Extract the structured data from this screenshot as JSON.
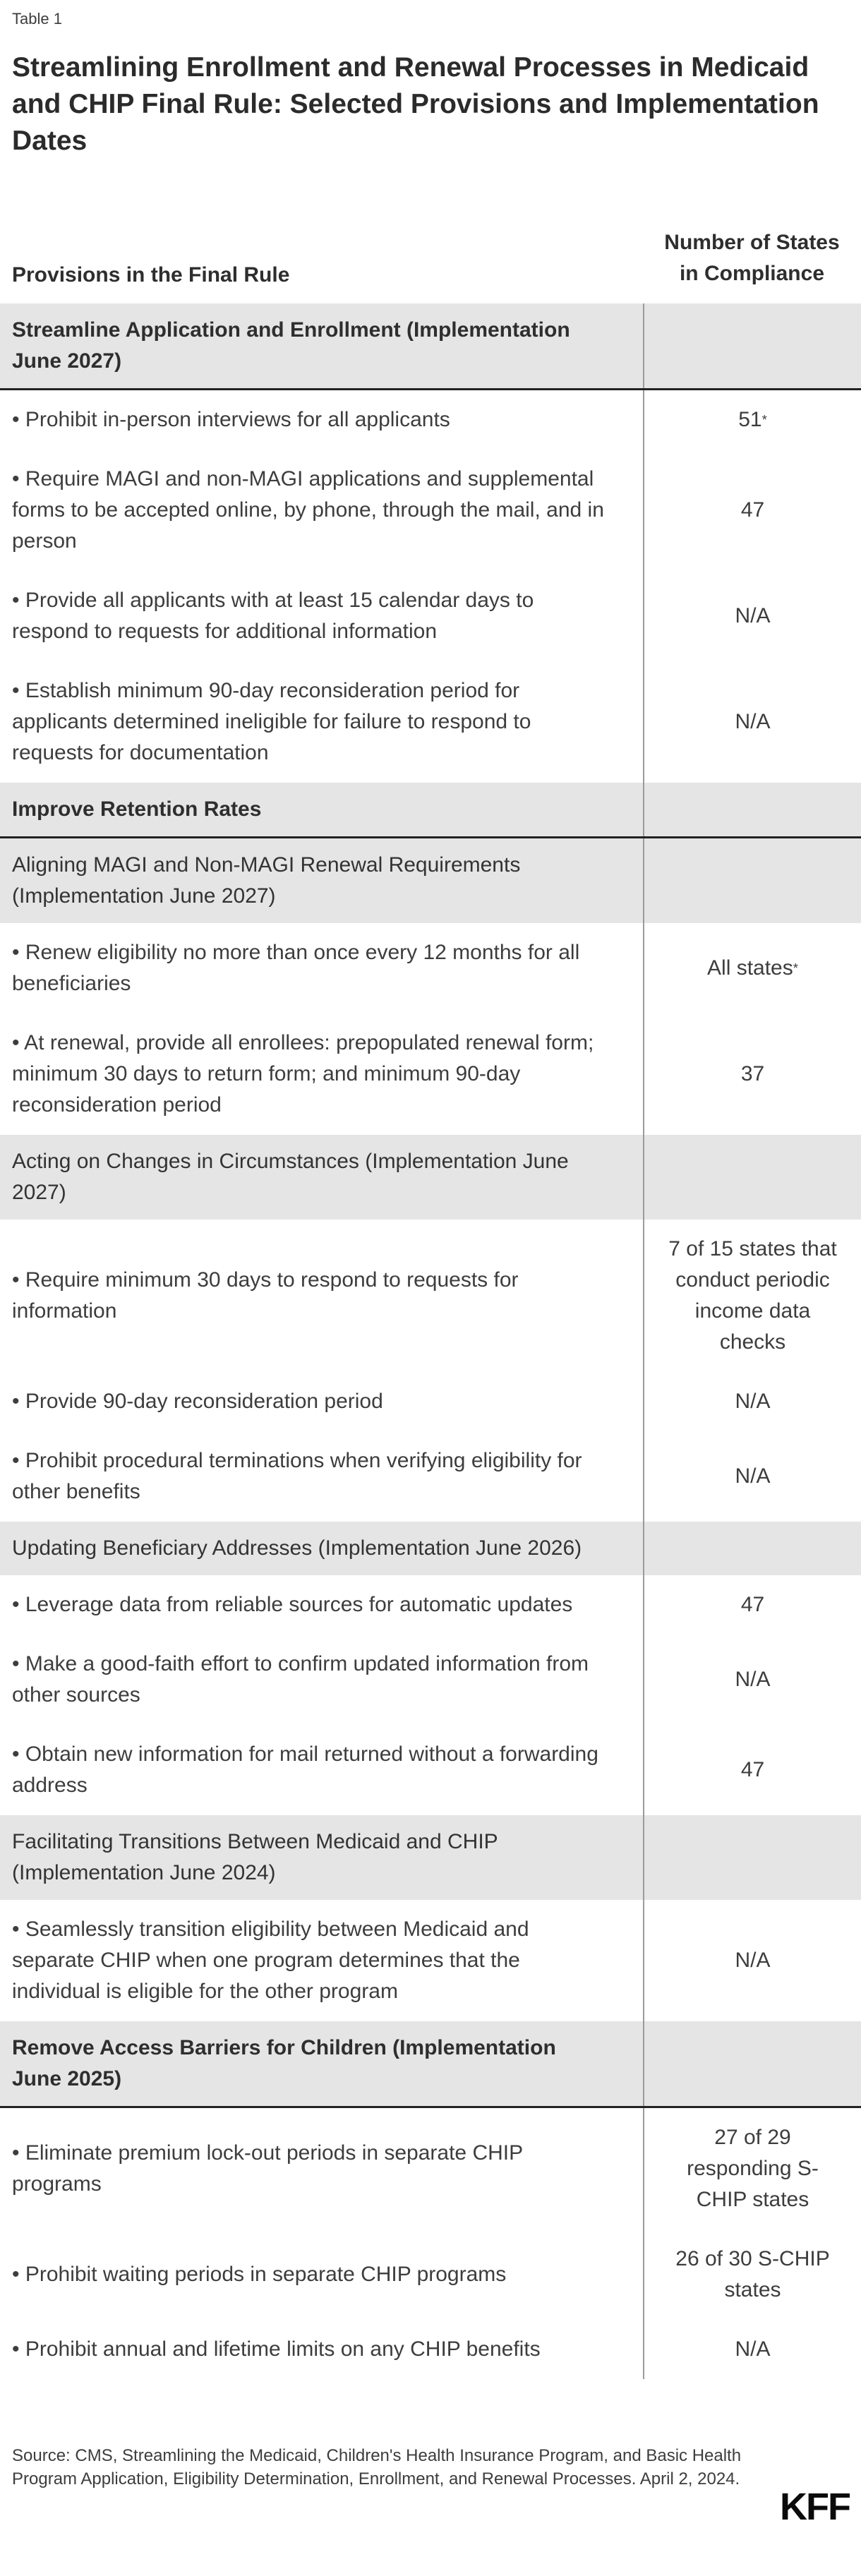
{
  "page": {
    "table_label": "Table 1",
    "title": "Streamlining Enrollment and Renewal Processes in Medicaid and CHIP Final Rule: Selected Provisions and Implementation Dates"
  },
  "colors": {
    "section_background": "#e5e5e5",
    "thick_rule": "#222222",
    "column_divider": "#9b9b9b",
    "body_text": "#3d3d3d",
    "title_text": "#2b2b2b",
    "logo_text": "#0b0b0b"
  },
  "table": {
    "bullet": "•",
    "header": {
      "provisions_col": "Provisions in the Final Rule",
      "compliance_col": "Number of States in Compliance"
    },
    "rows": [
      {
        "type": "section",
        "bold": true,
        "thick_bottom": true,
        "text": "Streamline Application and Enrollment (Implementation June 2027)",
        "value": ""
      },
      {
        "type": "item",
        "text": "Prohibit in-person interviews for all applicants",
        "value": "51",
        "value_sup": "*"
      },
      {
        "type": "item",
        "text": "Require MAGI and non-MAGI applications and supplemental forms to be accepted online, by phone, through the mail, and in person",
        "value": "47"
      },
      {
        "type": "item",
        "text": "Provide all applicants with at least 15 calendar days to respond to requests for additional information",
        "value": "N/A"
      },
      {
        "type": "item",
        "text": "Establish minimum 90-day reconsideration period for applicants determined ineligible for failure to respond to requests for documentation",
        "value": "N/A"
      },
      {
        "type": "section",
        "bold": true,
        "thick_bottom": true,
        "text": "Improve Retention Rates",
        "value": ""
      },
      {
        "type": "section",
        "bold": false,
        "thick_bottom": false,
        "text": "Aligning MAGI and Non-MAGI Renewal Requirements (Implementation June 2027)",
        "value": ""
      },
      {
        "type": "item",
        "text": "Renew eligibility no more than once every 12 months for all beneficiaries",
        "value": "All states",
        "value_sup": "*"
      },
      {
        "type": "item",
        "text": "At renewal, provide all enrollees: prepopulated renewal form; minimum 30 days to return form; and minimum 90-day reconsideration period",
        "value": "37"
      },
      {
        "type": "section",
        "bold": false,
        "thick_bottom": false,
        "text": "Acting on Changes in Circumstances (Implementation June 2027)",
        "value": ""
      },
      {
        "type": "item",
        "text": "Require minimum 30 days to respond to requests for information",
        "value": "7 of 15 states that conduct periodic income data checks"
      },
      {
        "type": "item",
        "text": "Provide 90-day reconsideration period",
        "value": "N/A"
      },
      {
        "type": "item",
        "text": "Prohibit procedural terminations when verifying eligibility for other benefits",
        "value": "N/A"
      },
      {
        "type": "section",
        "bold": false,
        "thick_bottom": false,
        "text": "Updating Beneficiary Addresses (Implementation June 2026)",
        "value": ""
      },
      {
        "type": "item",
        "text": "Leverage data from reliable sources for automatic updates",
        "value": "47"
      },
      {
        "type": "item",
        "text": "Make a good-faith effort to confirm updated information from other sources",
        "value": "N/A"
      },
      {
        "type": "item",
        "text": "Obtain new information for mail returned without a forwarding address",
        "value": "47"
      },
      {
        "type": "section",
        "bold": false,
        "thick_bottom": false,
        "text": "Facilitating Transitions Between Medicaid and CHIP (Implementation June 2024)",
        "value": ""
      },
      {
        "type": "item",
        "text": "Seamlessly transition eligibility between Medicaid and separate CHIP when one program determines that the individual is eligible for the other program",
        "value": "N/A"
      },
      {
        "type": "section",
        "bold": true,
        "thick_bottom": true,
        "text": "Remove Access Barriers for Children (Implementation June 2025)",
        "value": ""
      },
      {
        "type": "item",
        "text": "Eliminate premium lock-out periods in separate CHIP programs",
        "value": "27 of 29 responding S-CHIP states"
      },
      {
        "type": "item",
        "text": "Prohibit waiting periods in separate CHIP programs",
        "value": "26 of 30 S-CHIP states"
      },
      {
        "type": "item",
        "text": "Prohibit annual and lifetime limits on any CHIP benefits",
        "value": "N/A"
      }
    ]
  },
  "footer": {
    "source": "Source: CMS, Streamlining the Medicaid, Children's Health Insurance Program, and Basic Health Program Application, Eligibility Determination, Enrollment, and Renewal Processes. April 2, 2024.",
    "logo": "KFF"
  }
}
